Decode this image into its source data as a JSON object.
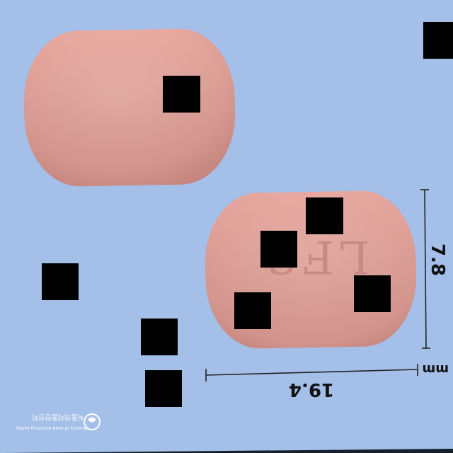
{
  "scene": {
    "background_color": "#a4c0e9",
    "tablet_color": "#e9aaa1",
    "imprint_color": "#c98a86"
  },
  "tablet_back": {
    "imprint": "LFS"
  },
  "dimensions": {
    "length": "19.4",
    "width": "7.8",
    "unit": "mm"
  },
  "watermark": {
    "korean": "식품의약품안전처",
    "english": "Ministry of Food and Drug Safety"
  }
}
